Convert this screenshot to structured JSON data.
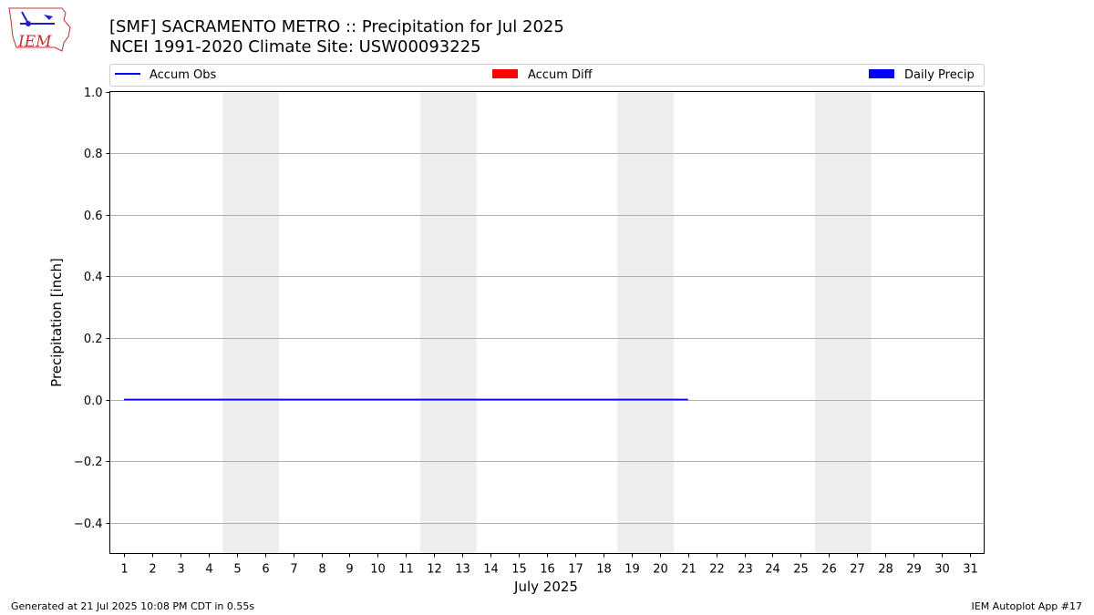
{
  "logo": {
    "text": "IEM"
  },
  "chart_data": {
    "type": "line",
    "title": "[SMF] SACRAMENTO METRO :: Precipitation for Jul 2025",
    "subtitle": "NCEI 1991-2020 Climate Site: USW00093225",
    "xlabel": "July 2025",
    "ylabel": "Precipitation [inch]",
    "xlim": [
      0.5,
      31.5
    ],
    "ylim": [
      -0.5,
      1.0
    ],
    "x_ticks": [
      1,
      2,
      3,
      4,
      5,
      6,
      7,
      8,
      9,
      10,
      11,
      12,
      13,
      14,
      15,
      16,
      17,
      18,
      19,
      20,
      21,
      22,
      23,
      24,
      25,
      26,
      27,
      28,
      29,
      30,
      31
    ],
    "y_ticks": [
      -0.4,
      -0.2,
      0.0,
      0.2,
      0.4,
      0.6,
      0.8,
      1.0
    ],
    "y_tick_labels": [
      "−0.4",
      "−0.2",
      "0.0",
      "0.2",
      "0.4",
      "0.6",
      "0.8",
      "1.0"
    ],
    "grid": "y",
    "weekend_shading": [
      [
        4.5,
        6.5
      ],
      [
        11.5,
        13.5
      ],
      [
        18.5,
        20.5
      ],
      [
        25.5,
        27.5
      ]
    ],
    "shading_color": "#eeeeee",
    "legend_position": "top",
    "legend": [
      {
        "label": "Accum Obs",
        "style": "line",
        "color": "#0000ff"
      },
      {
        "label": "Accum Diff",
        "style": "bar",
        "color": "#ff0000"
      },
      {
        "label": "Daily Precip",
        "style": "bar",
        "color": "#0000ff"
      }
    ],
    "series": [
      {
        "name": "Accum Obs",
        "color": "#0000ff",
        "x": [
          1,
          2,
          3,
          4,
          5,
          6,
          7,
          8,
          9,
          10,
          11,
          12,
          13,
          14,
          15,
          16,
          17,
          18,
          19,
          20,
          21
        ],
        "values": [
          0,
          0,
          0,
          0,
          0,
          0,
          0,
          0,
          0,
          0,
          0,
          0,
          0,
          0,
          0,
          0,
          0,
          0,
          0,
          0,
          0
        ]
      }
    ]
  },
  "footer": {
    "left": "Generated at 21 Jul 2025 10:08 PM CDT in 0.55s",
    "right": "IEM Autoplot App #17"
  }
}
